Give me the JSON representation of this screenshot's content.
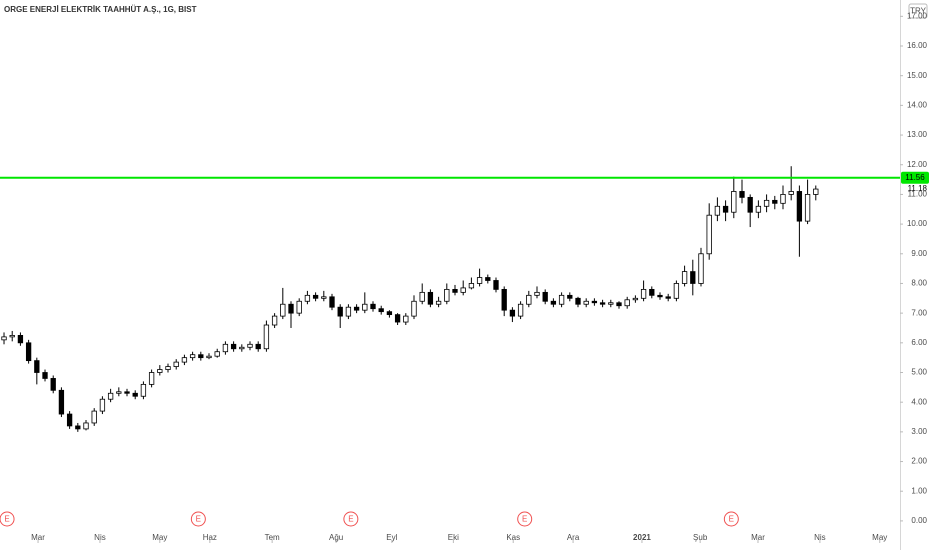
{
  "chart_data": {
    "type": "candlestick",
    "title": "ORGE ENERJİ ELEKTRİK TAAHHÜT A.Ş., 1G, BIST",
    "currency": "TRY",
    "up_color": "#ffffff",
    "down_color": "#000000",
    "wick_color": "#000000",
    "open": [
      6.1,
      6.2,
      6.25,
      6.0,
      5.4,
      5.0,
      4.8,
      4.4,
      3.6,
      3.2,
      3.1,
      3.3,
      3.7,
      4.1,
      4.3,
      4.35,
      4.3,
      4.2,
      4.6,
      5.0,
      5.1,
      5.2,
      5.35,
      5.5,
      5.6,
      5.5,
      5.55,
      5.7,
      5.95,
      5.8,
      5.85,
      5.95,
      5.8,
      6.6,
      6.9,
      7.3,
      7.0,
      7.4,
      7.6,
      7.5,
      7.55,
      7.2,
      6.9,
      7.2,
      7.1,
      7.3,
      7.15,
      7.05,
      6.95,
      6.7,
      6.9,
      7.4,
      7.7,
      7.3,
      7.4,
      7.8,
      7.7,
      7.85,
      8.0,
      8.2,
      8.1,
      7.8,
      7.1,
      6.9,
      7.3,
      7.6,
      7.7,
      7.4,
      7.3,
      7.6,
      7.5,
      7.3,
      7.4,
      7.35,
      7.3,
      7.35,
      7.25,
      7.45,
      7.5,
      7.8,
      7.6,
      7.55,
      7.5,
      8.0,
      8.4,
      8.0,
      9.0,
      10.3,
      10.6,
      10.4,
      11.1,
      10.9,
      10.4,
      10.6,
      10.8,
      10.7,
      11.0,
      11.1,
      10.1,
      11.0
    ],
    "high": [
      6.35,
      6.4,
      6.35,
      6.1,
      5.5,
      5.1,
      4.9,
      4.5,
      3.7,
      3.3,
      3.4,
      3.8,
      4.2,
      4.45,
      4.5,
      4.45,
      4.4,
      4.7,
      5.1,
      5.25,
      5.3,
      5.45,
      5.6,
      5.7,
      5.7,
      5.65,
      5.8,
      6.05,
      6.05,
      5.95,
      6.05,
      6.05,
      6.75,
      7.0,
      7.85,
      7.4,
      7.5,
      7.75,
      7.7,
      7.75,
      7.65,
      7.3,
      7.3,
      7.3,
      7.7,
      7.4,
      7.25,
      7.1,
      7.0,
      7.0,
      7.6,
      8.0,
      7.8,
      7.55,
      8.0,
      7.95,
      8.1,
      8.2,
      8.5,
      8.3,
      8.2,
      7.9,
      7.2,
      7.4,
      7.75,
      7.9,
      7.8,
      7.5,
      7.7,
      7.7,
      7.55,
      7.5,
      7.5,
      7.45,
      7.45,
      7.4,
      7.55,
      7.6,
      8.1,
      7.9,
      7.7,
      7.65,
      8.1,
      8.6,
      8.8,
      9.2,
      10.7,
      10.9,
      10.8,
      11.6,
      11.5,
      11.0,
      10.8,
      11.0,
      10.95,
      11.3,
      11.95,
      11.3,
      11.5,
      11.3
    ],
    "low": [
      5.95,
      6.05,
      5.9,
      5.3,
      4.6,
      4.7,
      4.3,
      3.5,
      3.1,
      3.0,
      3.05,
      3.2,
      3.6,
      4.0,
      4.2,
      4.2,
      4.1,
      4.1,
      4.5,
      4.9,
      5.0,
      5.1,
      5.25,
      5.4,
      5.4,
      5.45,
      5.5,
      5.6,
      5.7,
      5.7,
      5.75,
      5.7,
      5.7,
      6.5,
      6.8,
      6.5,
      6.9,
      7.3,
      7.4,
      7.4,
      7.1,
      6.5,
      6.8,
      7.0,
      7.0,
      7.05,
      6.95,
      6.85,
      6.6,
      6.6,
      6.8,
      7.3,
      7.2,
      7.2,
      7.3,
      7.6,
      7.6,
      7.8,
      7.9,
      8.0,
      7.7,
      6.9,
      6.7,
      6.8,
      7.2,
      7.5,
      7.3,
      7.2,
      7.2,
      7.4,
      7.2,
      7.2,
      7.25,
      7.2,
      7.2,
      7.15,
      7.15,
      7.35,
      7.4,
      7.5,
      7.45,
      7.4,
      7.4,
      7.9,
      7.6,
      7.9,
      8.8,
      10.1,
      10.1,
      10.2,
      10.7,
      9.9,
      10.2,
      10.4,
      10.5,
      10.5,
      10.8,
      8.9,
      10.0,
      10.8
    ],
    "close": [
      6.2,
      6.25,
      6.0,
      5.4,
      5.0,
      4.8,
      4.4,
      3.6,
      3.2,
      3.1,
      3.3,
      3.7,
      4.1,
      4.3,
      4.35,
      4.3,
      4.2,
      4.6,
      5.0,
      5.1,
      5.2,
      5.35,
      5.5,
      5.6,
      5.5,
      5.55,
      5.7,
      5.95,
      5.8,
      5.85,
      5.95,
      5.8,
      6.6,
      6.9,
      7.3,
      7.0,
      7.4,
      7.6,
      7.5,
      7.55,
      7.2,
      6.9,
      7.2,
      7.1,
      7.3,
      7.15,
      7.05,
      6.95,
      6.7,
      6.9,
      7.4,
      7.7,
      7.3,
      7.4,
      7.8,
      7.7,
      7.85,
      8.0,
      8.2,
      8.1,
      7.8,
      7.1,
      6.9,
      7.3,
      7.6,
      7.7,
      7.4,
      7.3,
      7.6,
      7.5,
      7.3,
      7.4,
      7.35,
      7.3,
      7.35,
      7.25,
      7.45,
      7.5,
      7.8,
      7.6,
      7.55,
      7.5,
      8.0,
      8.4,
      8.0,
      9.0,
      10.3,
      10.6,
      10.4,
      11.1,
      10.9,
      10.4,
      10.6,
      10.8,
      10.7,
      11.0,
      11.1,
      10.1,
      11.0,
      11.18
    ],
    "xlim": [
      -0.49,
      109.27
    ],
    "xticks": [
      {
        "value": 4.15,
        "label": "Mar"
      },
      {
        "value": 11.7,
        "label": "Nis"
      },
      {
        "value": 19.0,
        "label": "May"
      },
      {
        "value": 25.1,
        "label": "Haz"
      },
      {
        "value": 32.7,
        "label": "Tem"
      },
      {
        "value": 40.5,
        "label": "Ağu"
      },
      {
        "value": 47.3,
        "label": "Eyl"
      },
      {
        "value": 54.8,
        "label": "Eki"
      },
      {
        "value": 62.1,
        "label": "Kas"
      },
      {
        "value": 69.4,
        "label": "Ara"
      },
      {
        "value": 77.8,
        "label": "2021"
      },
      {
        "value": 84.9,
        "label": "Şub"
      },
      {
        "value": 91.95,
        "label": "Mar"
      },
      {
        "value": 99.5,
        "label": "Nis"
      },
      {
        "value": 106.8,
        "label": "May"
      }
    ],
    "ylim": [
      -0.98,
      17.55
    ],
    "yticks": [
      {
        "value": 0,
        "label": "0.00"
      },
      {
        "value": 1,
        "label": "1.00"
      },
      {
        "value": 2,
        "label": "2.00"
      },
      {
        "value": 3,
        "label": "3.00"
      },
      {
        "value": 4,
        "label": "4.00"
      },
      {
        "value": 5,
        "label": "5.00"
      },
      {
        "value": 6,
        "label": "6.00"
      },
      {
        "value": 7,
        "label": "7.00"
      },
      {
        "value": 8,
        "label": "8.00"
      },
      {
        "value": 9,
        "label": "9.00"
      },
      {
        "value": 10,
        "label": "10.00"
      },
      {
        "value": 11,
        "label": "11.00"
      },
      {
        "value": 12,
        "label": "12.00"
      },
      {
        "value": 13,
        "label": "13.00"
      },
      {
        "value": 14,
        "label": "14.00"
      },
      {
        "value": 15,
        "label": "15.00"
      },
      {
        "value": 16,
        "label": "16.00"
      },
      {
        "value": 17,
        "label": "17.00"
      }
    ],
    "level": {
      "value": 11.56,
      "color": "#00e600"
    },
    "events": [
      {
        "x": 0.37,
        "label": "E"
      },
      {
        "x": 23.7,
        "label": "E"
      },
      {
        "x": 42.3,
        "label": "E"
      },
      {
        "x": 63.5,
        "label": "E"
      },
      {
        "x": 88.7,
        "label": "E"
      }
    ]
  }
}
